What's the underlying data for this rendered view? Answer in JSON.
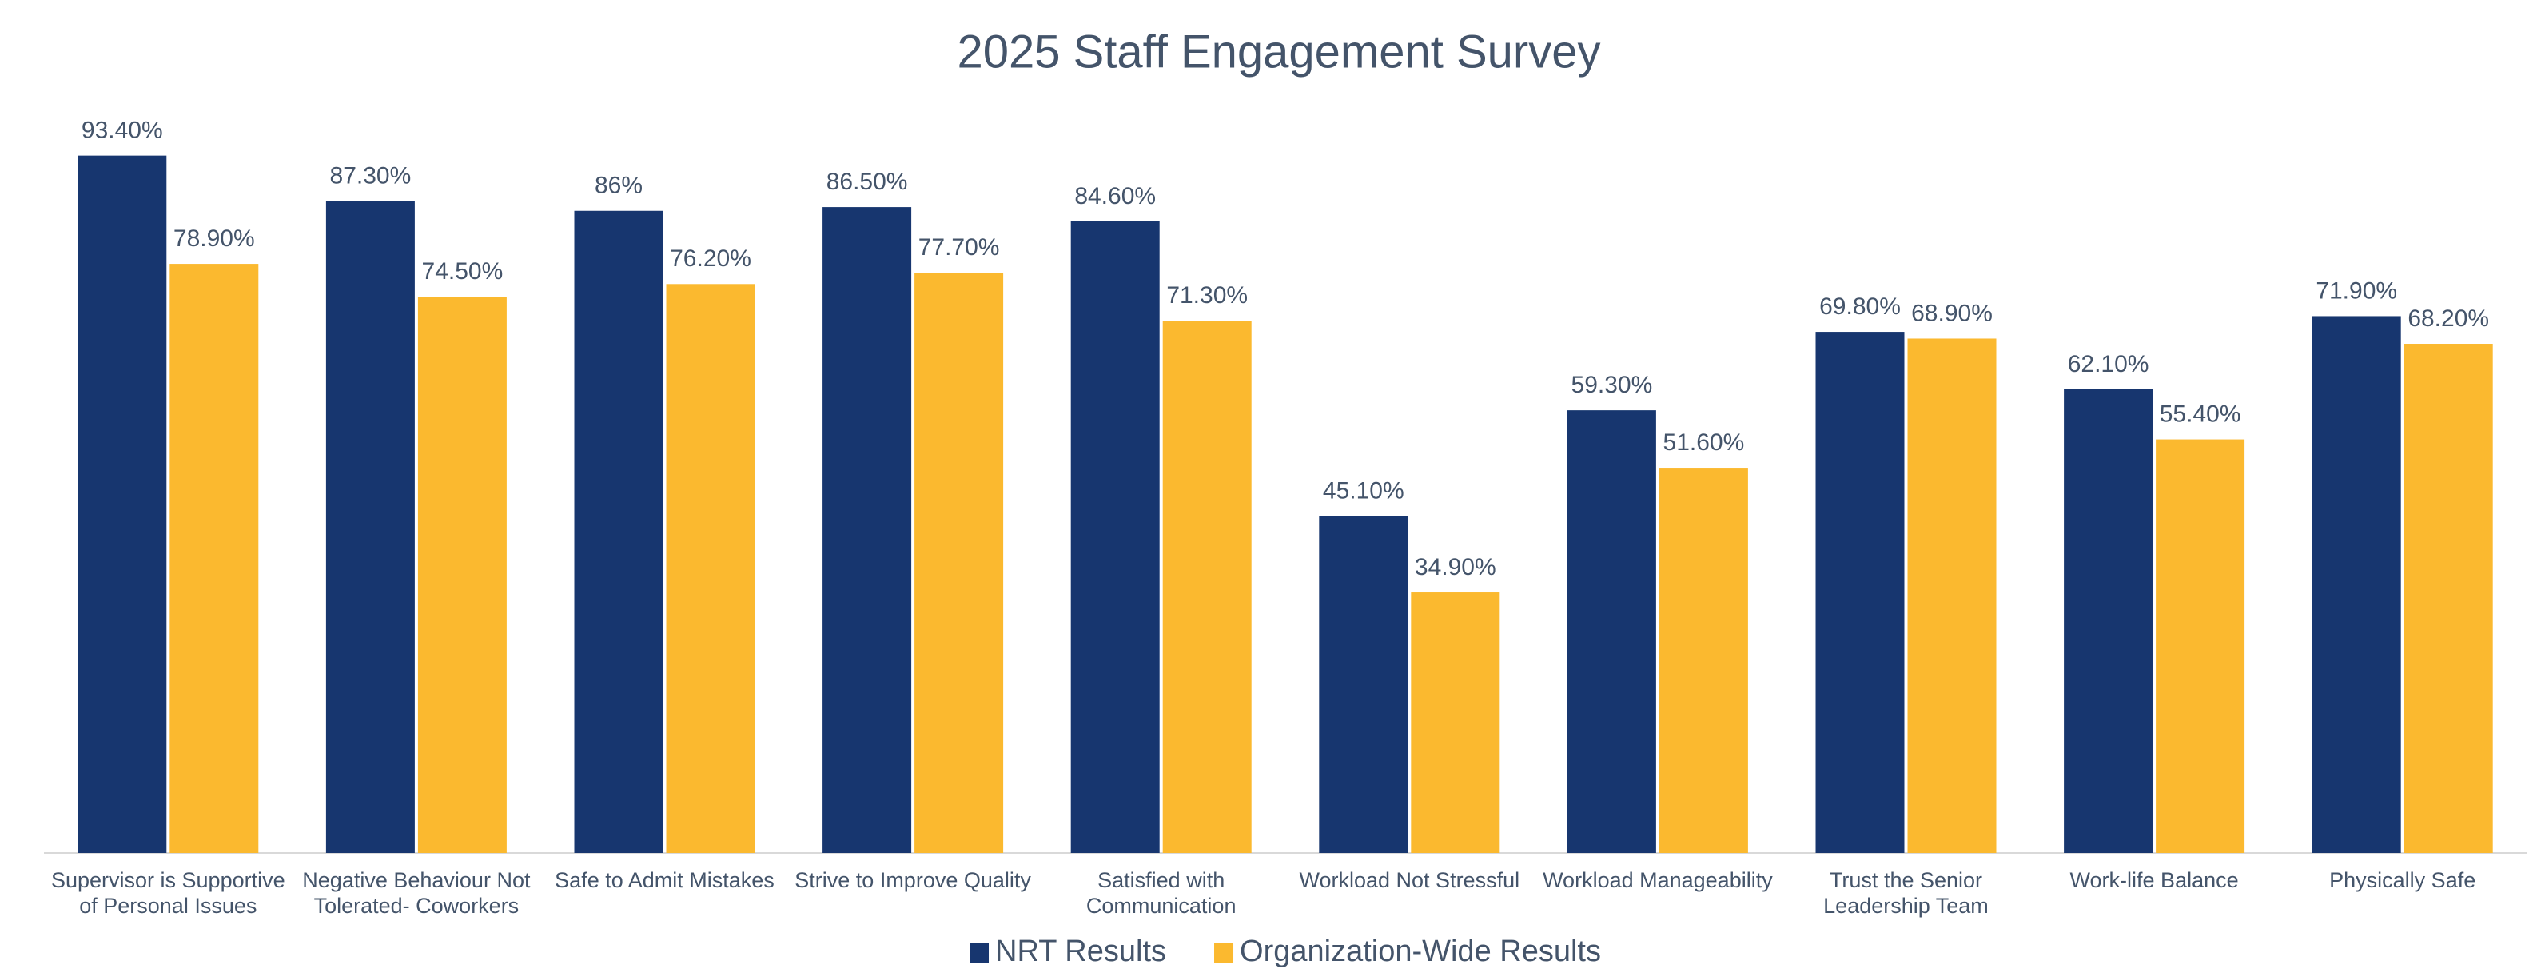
{
  "chart_data": {
    "type": "bar",
    "title": "2025 Staff Engagement Survey",
    "categories": [
      "Supervisor is Supportive of Personal Issues",
      "Negative Behaviour Not Tolerated- Coworkers",
      "Safe to Admit Mistakes",
      "Strive to Improve Quality",
      "Satisfied with Communication",
      "Workload Not Stressful",
      "Workload Manageability",
      "Trust the Senior Leadership Team",
      "Work-life Balance",
      "Physically Safe"
    ],
    "series": [
      {
        "name": "NRT Results",
        "color": "#17366f",
        "values": [
          93.4,
          87.3,
          86,
          86.5,
          84.6,
          45.1,
          59.3,
          69.8,
          62.1,
          71.9
        ],
        "value_labels": [
          "93.40%",
          "87.30%",
          "86%",
          "86.50%",
          "84.60%",
          "45.10%",
          "59.30%",
          "69.80%",
          "62.10%",
          "71.90%"
        ]
      },
      {
        "name": "Organization-Wide Results",
        "color": "#fbb92f",
        "values": [
          78.9,
          74.5,
          76.2,
          77.7,
          71.3,
          34.9,
          51.6,
          68.9,
          55.4,
          68.2
        ],
        "value_labels": [
          "78.90%",
          "74.50%",
          "76.20%",
          "77.70%",
          "71.30%",
          "34.90%",
          "51.60%",
          "68.90%",
          "55.40%",
          "68.20%"
        ]
      }
    ],
    "ylim": [
      0,
      100
    ],
    "legend": "bottom"
  }
}
